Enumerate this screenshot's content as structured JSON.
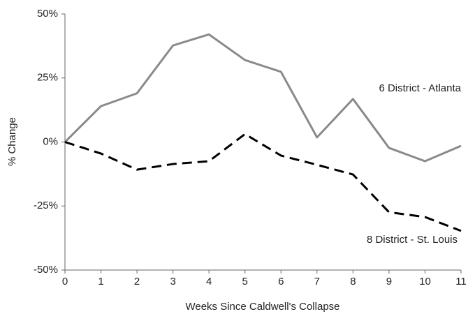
{
  "chart_data": {
    "type": "line",
    "x_label": "Weeks Since Caldwell's Collapse",
    "y_label": "% Change",
    "x": [
      0,
      1,
      2,
      3,
      4,
      5,
      6,
      7,
      8,
      9,
      10,
      11
    ],
    "series": [
      {
        "name": "6 District - Atlanta",
        "color": "#8a8a8a",
        "line_style": "solid",
        "values": [
          0,
          14,
          19,
          37.7,
          42,
          32,
          27.4,
          1.8,
          16.8,
          -2.3,
          -7.5,
          -1.5
        ]
      },
      {
        "name": "8 District - St. Louis",
        "color": "#000000",
        "line_style": "dashed",
        "values": [
          0,
          -4.5,
          -10.8,
          -8.6,
          -7.5,
          3.1,
          -5.3,
          -8.9,
          -12.7,
          -27.4,
          -29.3,
          -34.7
        ]
      }
    ],
    "xlim": [
      0,
      11
    ],
    "xticks": [
      0,
      1,
      2,
      3,
      4,
      5,
      6,
      7,
      8,
      9,
      10,
      11
    ],
    "ylim": [
      -50,
      50
    ],
    "yticks": [
      {
        "value": -50,
        "label": "-50%"
      },
      {
        "value": -25,
        "label": "-25%"
      },
      {
        "value": 0,
        "label": "0%"
      },
      {
        "value": 25,
        "label": "25%"
      },
      {
        "value": 50,
        "label": "50%"
      }
    ],
    "grid": false
  }
}
